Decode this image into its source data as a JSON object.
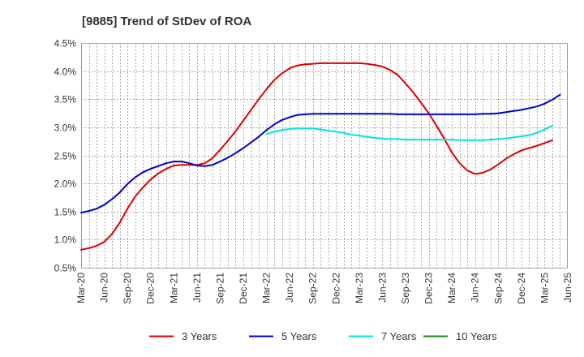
{
  "chart_data": {
    "type": "line",
    "title": "[9885]  Trend of StDev of ROA",
    "xlabel": "",
    "ylabel": "",
    "y_ticks": [
      "0.5%",
      "1.0%",
      "1.5%",
      "2.0%",
      "2.5%",
      "3.0%",
      "3.5%",
      "4.0%",
      "4.5%"
    ],
    "ylim": [
      0.5,
      4.5
    ],
    "x_ticks": [
      "Mar-20",
      "Jun-20",
      "Sep-20",
      "Dec-20",
      "Mar-21",
      "Jun-21",
      "Sep-21",
      "Dec-21",
      "Mar-22",
      "Jun-22",
      "Sep-22",
      "Dec-22",
      "Mar-23",
      "Jun-23",
      "Sep-23",
      "Dec-23",
      "Mar-24",
      "Jun-24",
      "Sep-24",
      "Dec-24",
      "Mar-25",
      "Jun-25"
    ],
    "xlim": [
      "2020-03",
      "2025-06"
    ],
    "grid": true,
    "legend_position": "bottom",
    "series": [
      {
        "name": "3 Years",
        "color": "#dd0000",
        "points": [
          [
            "2020-03",
            0.82
          ],
          [
            "2020-04",
            0.85
          ],
          [
            "2020-05",
            0.89
          ],
          [
            "2020-06",
            0.96
          ],
          [
            "2020-07",
            1.1
          ],
          [
            "2020-08",
            1.3
          ],
          [
            "2020-09",
            1.55
          ],
          [
            "2020-10",
            1.77
          ],
          [
            "2020-11",
            1.93
          ],
          [
            "2020-12",
            2.07
          ],
          [
            "2021-01",
            2.18
          ],
          [
            "2021-02",
            2.26
          ],
          [
            "2021-03",
            2.32
          ],
          [
            "2021-04",
            2.33
          ],
          [
            "2021-05",
            2.33
          ],
          [
            "2021-06",
            2.33
          ],
          [
            "2021-07",
            2.36
          ],
          [
            "2021-08",
            2.45
          ],
          [
            "2021-09",
            2.6
          ],
          [
            "2021-10",
            2.76
          ],
          [
            "2021-11",
            2.93
          ],
          [
            "2021-12",
            3.12
          ],
          [
            "2022-01",
            3.31
          ],
          [
            "2022-02",
            3.5
          ],
          [
            "2022-03",
            3.68
          ],
          [
            "2022-04",
            3.84
          ],
          [
            "2022-05",
            3.96
          ],
          [
            "2022-06",
            4.05
          ],
          [
            "2022-07",
            4.1
          ],
          [
            "2022-08",
            4.12
          ],
          [
            "2022-09",
            4.13
          ],
          [
            "2022-10",
            4.14
          ],
          [
            "2022-11",
            4.14
          ],
          [
            "2022-12",
            4.14
          ],
          [
            "2023-01",
            4.14
          ],
          [
            "2023-02",
            4.14
          ],
          [
            "2023-03",
            4.14
          ],
          [
            "2023-04",
            4.13
          ],
          [
            "2023-05",
            4.11
          ],
          [
            "2023-06",
            4.08
          ],
          [
            "2023-07",
            4.02
          ],
          [
            "2023-08",
            3.93
          ],
          [
            "2023-09",
            3.78
          ],
          [
            "2023-10",
            3.62
          ],
          [
            "2023-11",
            3.44
          ],
          [
            "2023-12",
            3.25
          ],
          [
            "2024-01",
            3.03
          ],
          [
            "2024-02",
            2.8
          ],
          [
            "2024-03",
            2.55
          ],
          [
            "2024-04",
            2.36
          ],
          [
            "2024-05",
            2.23
          ],
          [
            "2024-06",
            2.17
          ],
          [
            "2024-07",
            2.19
          ],
          [
            "2024-08",
            2.25
          ],
          [
            "2024-09",
            2.34
          ],
          [
            "2024-10",
            2.44
          ],
          [
            "2024-11",
            2.52
          ],
          [
            "2024-12",
            2.59
          ],
          [
            "2025-01",
            2.63
          ],
          [
            "2025-02",
            2.67
          ],
          [
            "2025-03",
            2.72
          ],
          [
            "2025-04",
            2.77
          ]
        ]
      },
      {
        "name": "5 Years",
        "color": "#0000cc",
        "points": [
          [
            "2020-03",
            1.48
          ],
          [
            "2020-04",
            1.51
          ],
          [
            "2020-05",
            1.55
          ],
          [
            "2020-06",
            1.62
          ],
          [
            "2020-07",
            1.72
          ],
          [
            "2020-08",
            1.84
          ],
          [
            "2020-09",
            1.99
          ],
          [
            "2020-10",
            2.11
          ],
          [
            "2020-11",
            2.2
          ],
          [
            "2020-12",
            2.26
          ],
          [
            "2021-01",
            2.31
          ],
          [
            "2021-02",
            2.36
          ],
          [
            "2021-03",
            2.39
          ],
          [
            "2021-04",
            2.39
          ],
          [
            "2021-05",
            2.36
          ],
          [
            "2021-06",
            2.32
          ],
          [
            "2021-07",
            2.31
          ],
          [
            "2021-08",
            2.33
          ],
          [
            "2021-09",
            2.39
          ],
          [
            "2021-10",
            2.46
          ],
          [
            "2021-11",
            2.54
          ],
          [
            "2021-12",
            2.63
          ],
          [
            "2022-01",
            2.73
          ],
          [
            "2022-02",
            2.83
          ],
          [
            "2022-03",
            2.95
          ],
          [
            "2022-04",
            3.05
          ],
          [
            "2022-05",
            3.13
          ],
          [
            "2022-06",
            3.18
          ],
          [
            "2022-07",
            3.22
          ],
          [
            "2022-08",
            3.23
          ],
          [
            "2022-09",
            3.24
          ],
          [
            "2022-10",
            3.24
          ],
          [
            "2022-11",
            3.24
          ],
          [
            "2022-12",
            3.24
          ],
          [
            "2023-01",
            3.24
          ],
          [
            "2023-02",
            3.24
          ],
          [
            "2023-03",
            3.24
          ],
          [
            "2023-04",
            3.24
          ],
          [
            "2023-05",
            3.24
          ],
          [
            "2023-06",
            3.24
          ],
          [
            "2023-07",
            3.24
          ],
          [
            "2023-08",
            3.23
          ],
          [
            "2023-09",
            3.23
          ],
          [
            "2023-10",
            3.23
          ],
          [
            "2023-11",
            3.23
          ],
          [
            "2023-12",
            3.23
          ],
          [
            "2024-01",
            3.23
          ],
          [
            "2024-02",
            3.23
          ],
          [
            "2024-03",
            3.23
          ],
          [
            "2024-04",
            3.23
          ],
          [
            "2024-05",
            3.23
          ],
          [
            "2024-06",
            3.23
          ],
          [
            "2024-07",
            3.24
          ],
          [
            "2024-08",
            3.24
          ],
          [
            "2024-09",
            3.25
          ],
          [
            "2024-10",
            3.27
          ],
          [
            "2024-11",
            3.29
          ],
          [
            "2024-12",
            3.31
          ],
          [
            "2025-01",
            3.34
          ],
          [
            "2025-02",
            3.37
          ],
          [
            "2025-03",
            3.42
          ],
          [
            "2025-04",
            3.49
          ],
          [
            "2025-05",
            3.58
          ]
        ]
      },
      {
        "name": "7 Years",
        "color": "#00e5e5",
        "points": [
          [
            "2022-03",
            2.88
          ],
          [
            "2022-04",
            2.92
          ],
          [
            "2022-05",
            2.95
          ],
          [
            "2022-06",
            2.97
          ],
          [
            "2022-07",
            2.98
          ],
          [
            "2022-08",
            2.98
          ],
          [
            "2022-09",
            2.98
          ],
          [
            "2022-10",
            2.96
          ],
          [
            "2022-11",
            2.94
          ],
          [
            "2022-12",
            2.92
          ],
          [
            "2023-01",
            2.9
          ],
          [
            "2023-02",
            2.87
          ],
          [
            "2023-03",
            2.85
          ],
          [
            "2023-04",
            2.83
          ],
          [
            "2023-05",
            2.81
          ],
          [
            "2023-06",
            2.8
          ],
          [
            "2023-07",
            2.79
          ],
          [
            "2023-08",
            2.79
          ],
          [
            "2023-09",
            2.78
          ],
          [
            "2023-10",
            2.78
          ],
          [
            "2023-11",
            2.78
          ],
          [
            "2023-12",
            2.78
          ],
          [
            "2024-01",
            2.78
          ],
          [
            "2024-02",
            2.78
          ],
          [
            "2024-03",
            2.78
          ],
          [
            "2024-04",
            2.77
          ],
          [
            "2024-05",
            2.77
          ],
          [
            "2024-06",
            2.77
          ],
          [
            "2024-07",
            2.77
          ],
          [
            "2024-08",
            2.78
          ],
          [
            "2024-09",
            2.79
          ],
          [
            "2024-10",
            2.8
          ],
          [
            "2024-11",
            2.82
          ],
          [
            "2024-12",
            2.84
          ],
          [
            "2025-01",
            2.86
          ],
          [
            "2025-02",
            2.9
          ],
          [
            "2025-03",
            2.96
          ],
          [
            "2025-04",
            3.03
          ]
        ]
      },
      {
        "name": "10 Years",
        "color": "#228b22",
        "points": []
      }
    ]
  }
}
